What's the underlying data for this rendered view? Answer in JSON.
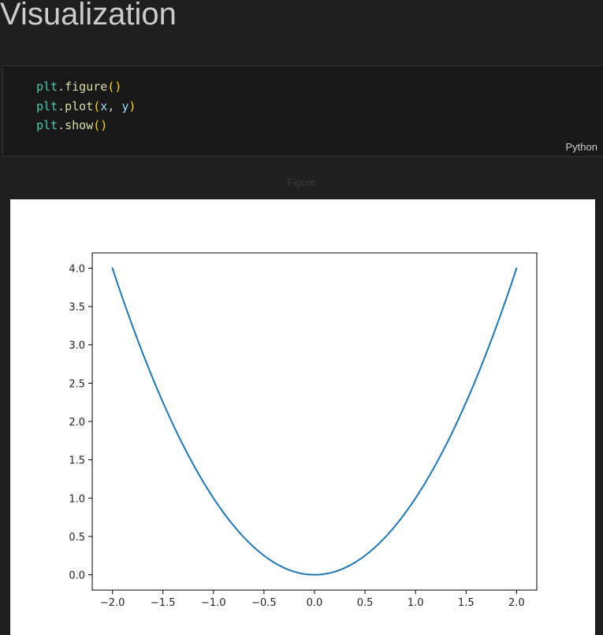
{
  "heading": "Visualization",
  "code_cell": {
    "lines": [
      [
        [
          "mod",
          "plt"
        ],
        [
          "punct",
          "."
        ],
        [
          "fn",
          "figure"
        ],
        [
          "paren",
          "()"
        ]
      ],
      [
        [
          "mod",
          "plt"
        ],
        [
          "punct",
          "."
        ],
        [
          "fn",
          "plot"
        ],
        [
          "paren",
          "("
        ],
        [
          "var",
          "x"
        ],
        [
          "punct",
          ", "
        ],
        [
          "var",
          "y"
        ],
        [
          "paren",
          ")"
        ]
      ],
      [
        [
          "mod",
          "plt"
        ],
        [
          "punct",
          "."
        ],
        [
          "fn",
          "show"
        ],
        [
          "paren",
          "()"
        ]
      ]
    ],
    "language": "Python"
  },
  "figure_caption": "Figure",
  "chart_data": {
    "type": "line",
    "function": "y = x^2",
    "x": [
      -2.0,
      -1.8,
      -1.6,
      -1.4,
      -1.2,
      -1.0,
      -0.8,
      -0.6,
      -0.4,
      -0.2,
      0.0,
      0.2,
      0.4,
      0.6,
      0.8,
      1.0,
      1.2,
      1.4,
      1.6,
      1.8,
      2.0
    ],
    "series": [
      {
        "color": "#1f77b4",
        "values": [
          4.0,
          3.24,
          2.56,
          1.96,
          1.44,
          1.0,
          0.64,
          0.36,
          0.16,
          0.04,
          0.0,
          0.04,
          0.16,
          0.36,
          0.64,
          1.0,
          1.44,
          1.96,
          2.56,
          3.24,
          4.0
        ]
      }
    ],
    "xlim": [
      -2.2,
      2.2
    ],
    "ylim": [
      -0.2,
      4.2
    ],
    "xticks": [
      "−2.0",
      "−1.5",
      "−1.0",
      "−0.5",
      "0.0",
      "0.5",
      "1.0",
      "1.5",
      "2.0"
    ],
    "xtick_values": [
      -2.0,
      -1.5,
      -1.0,
      -0.5,
      0.0,
      0.5,
      1.0,
      1.5,
      2.0
    ],
    "yticks": [
      "0.0",
      "0.5",
      "1.0",
      "1.5",
      "2.0",
      "2.5",
      "3.0",
      "3.5",
      "4.0"
    ],
    "ytick_values": [
      0.0,
      0.5,
      1.0,
      1.5,
      2.0,
      2.5,
      3.0,
      3.5,
      4.0
    ],
    "title": "",
    "xlabel": "",
    "ylabel": "",
    "grid": false,
    "legend": "none"
  }
}
